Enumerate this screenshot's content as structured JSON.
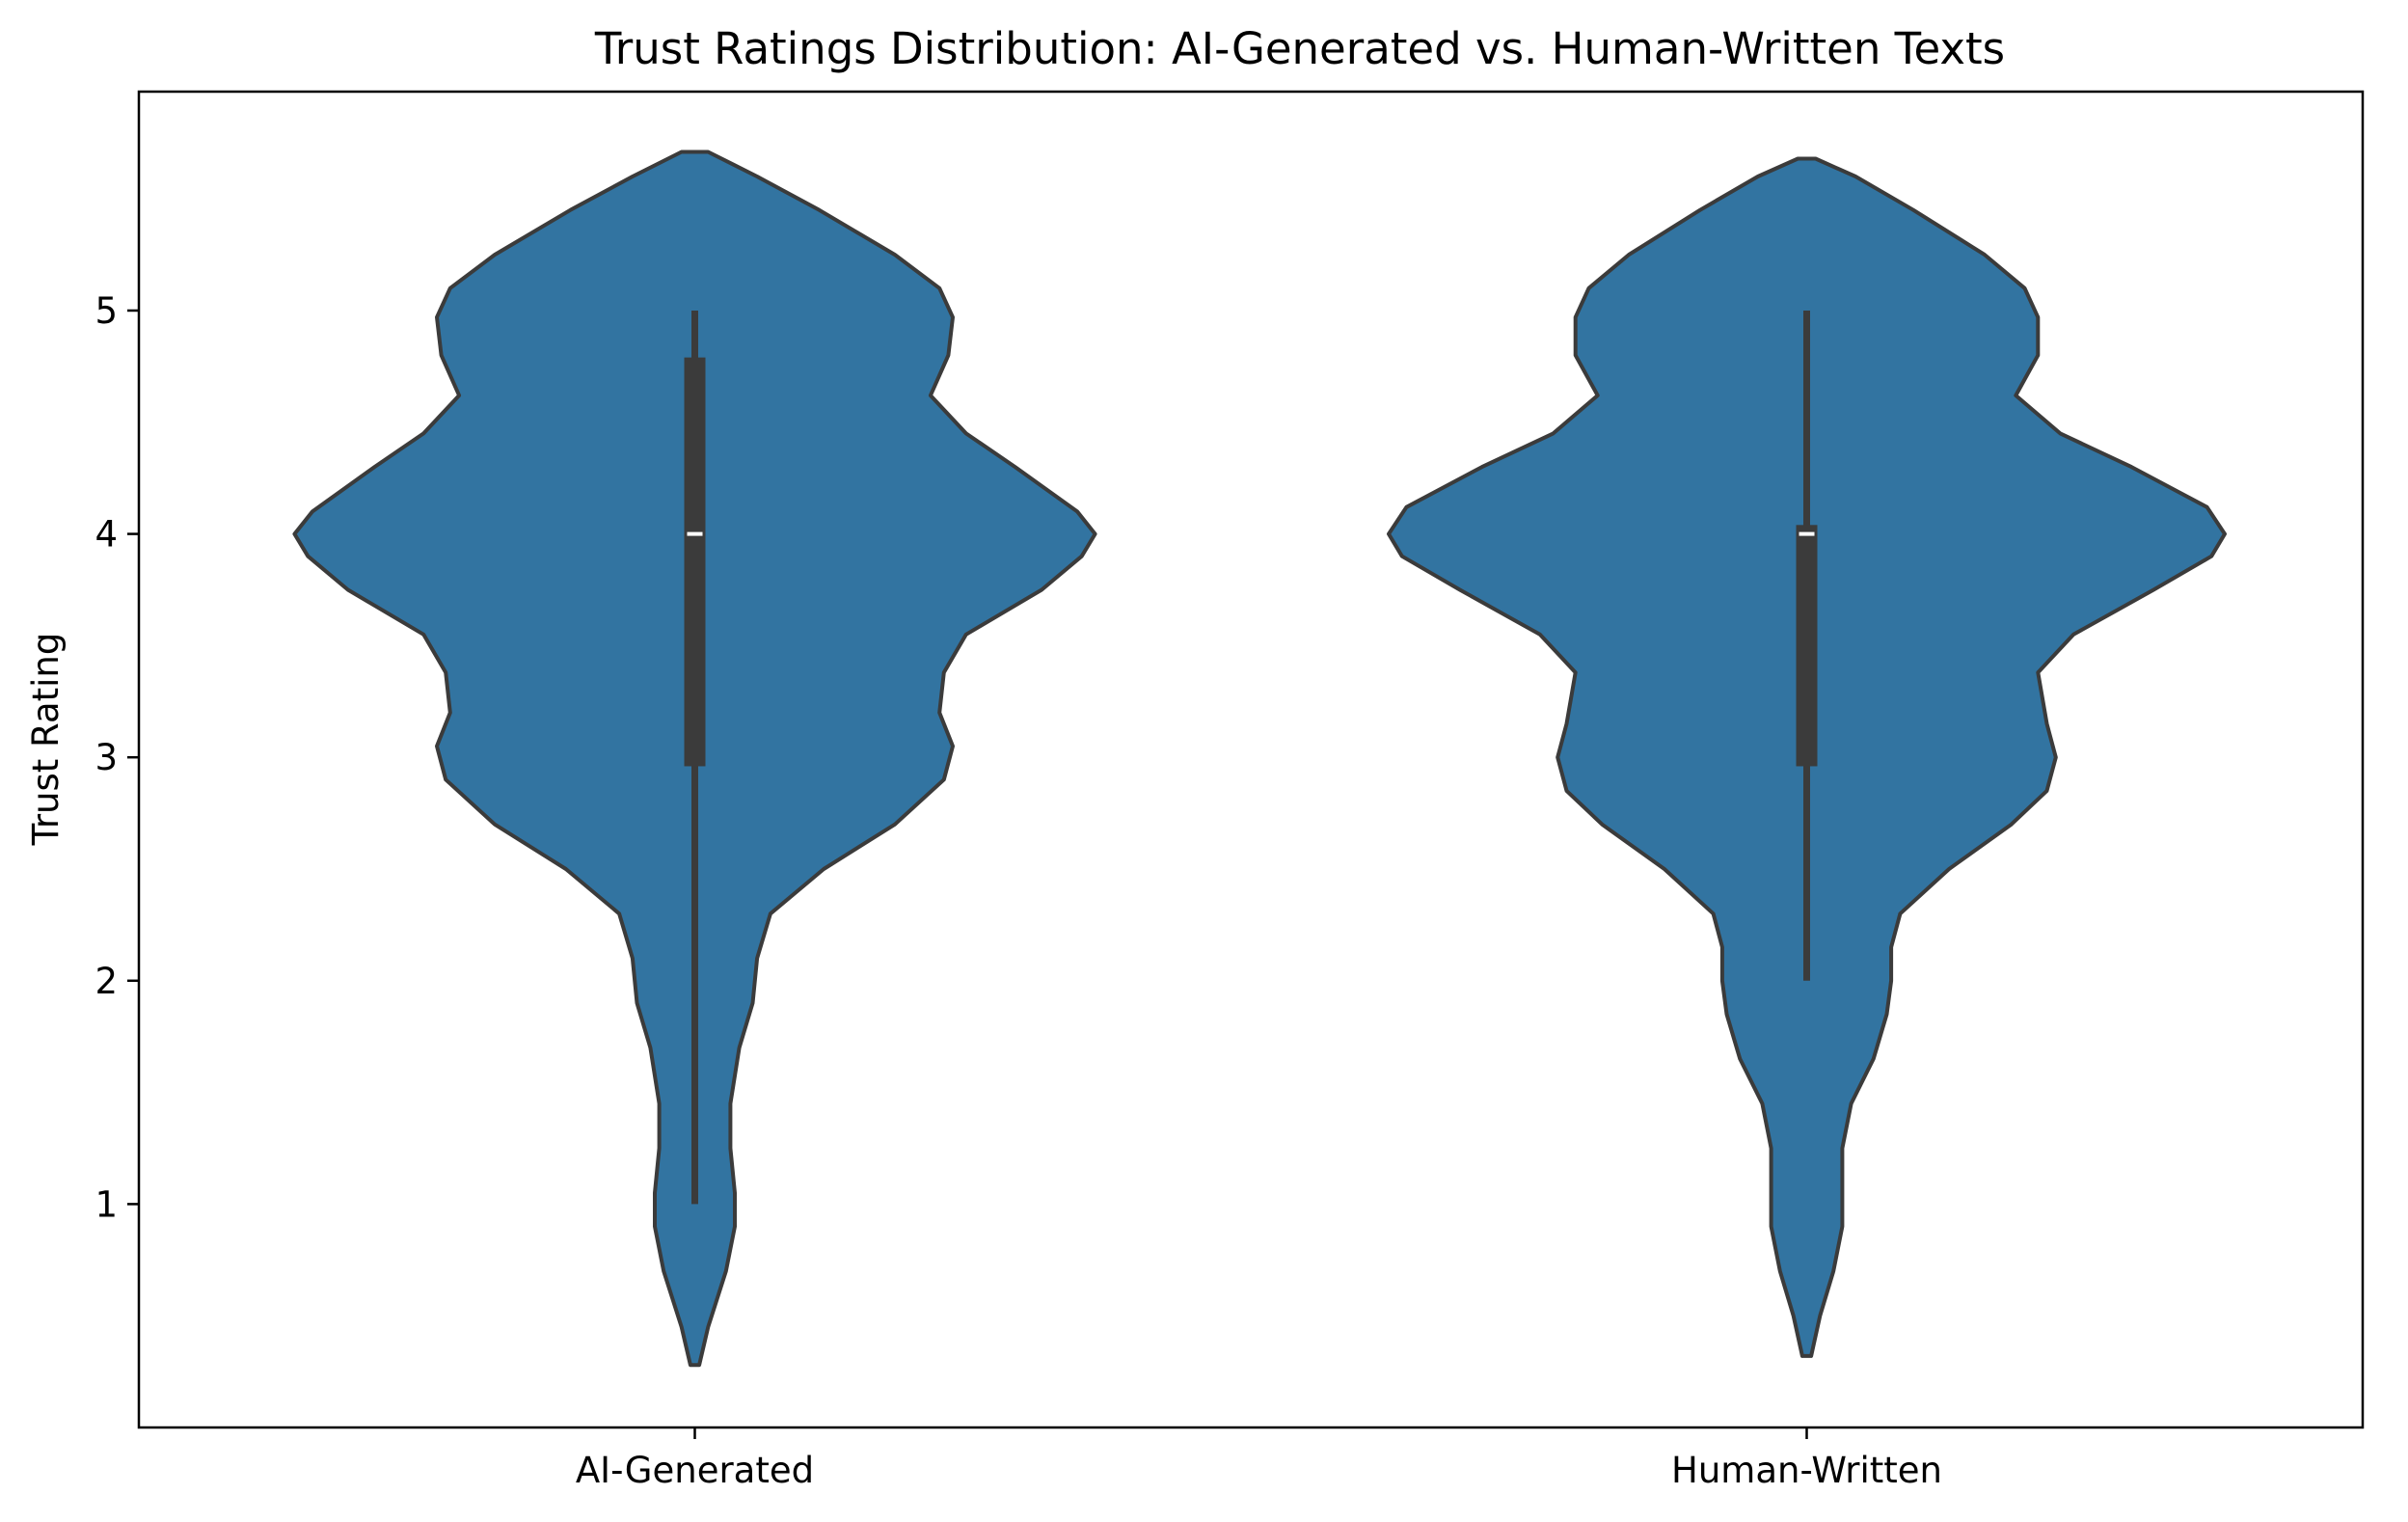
{
  "chart_data": {
    "type": "violin",
    "title": "Trust Ratings Distribution: AI-Generated vs. Human-Written Texts",
    "xlabel": "",
    "ylabel": "Trust Rating",
    "categories": [
      "AI-Generated",
      "Human-Written"
    ],
    "ylim": [
      0.0,
      5.98
    ],
    "yticks": [
      1,
      2,
      3,
      4,
      5
    ],
    "grid": false,
    "colors": {
      "fill": "#3274a1",
      "edge": "#3b3b3b",
      "box": "#3b3b3b",
      "median": "#ffffff"
    },
    "series": [
      {
        "category": "AI-Generated",
        "min": 1,
        "q1": 2.96,
        "median": 4,
        "q3": 4.79,
        "max": 5,
        "density_range": [
          0.28,
          5.71
        ],
        "density": [
          [
            0.28,
            0.01
          ],
          [
            0.45,
            0.03
          ],
          [
            0.7,
            0.07
          ],
          [
            0.9,
            0.09
          ],
          [
            1.05,
            0.09
          ],
          [
            1.25,
            0.08
          ],
          [
            1.45,
            0.08
          ],
          [
            1.7,
            0.1
          ],
          [
            1.9,
            0.13
          ],
          [
            2.1,
            0.14
          ],
          [
            2.3,
            0.17
          ],
          [
            2.5,
            0.29
          ],
          [
            2.7,
            0.45
          ],
          [
            2.9,
            0.56
          ],
          [
            3.05,
            0.58
          ],
          [
            3.2,
            0.55
          ],
          [
            3.38,
            0.56
          ],
          [
            3.55,
            0.61
          ],
          [
            3.75,
            0.78
          ],
          [
            3.9,
            0.87
          ],
          [
            4.0,
            0.9
          ],
          [
            4.1,
            0.86
          ],
          [
            4.3,
            0.72
          ],
          [
            4.45,
            0.61
          ],
          [
            4.62,
            0.53
          ],
          [
            4.8,
            0.57
          ],
          [
            4.97,
            0.58
          ],
          [
            5.1,
            0.55
          ],
          [
            5.25,
            0.45
          ],
          [
            5.45,
            0.28
          ],
          [
            5.6,
            0.14
          ],
          [
            5.71,
            0.03
          ]
        ]
      },
      {
        "category": "Human-Written",
        "min": 2,
        "q1": 2.96,
        "median": 4,
        "q3": 4.04,
        "max": 5,
        "density_range": [
          0.32,
          5.68
        ],
        "density": [
          [
            0.32,
            0.01
          ],
          [
            0.5,
            0.03
          ],
          [
            0.7,
            0.06
          ],
          [
            0.9,
            0.08
          ],
          [
            1.05,
            0.08
          ],
          [
            1.25,
            0.08
          ],
          [
            1.45,
            0.1
          ],
          [
            1.65,
            0.15
          ],
          [
            1.85,
            0.18
          ],
          [
            2.0,
            0.19
          ],
          [
            2.15,
            0.19
          ],
          [
            2.3,
            0.21
          ],
          [
            2.5,
            0.32
          ],
          [
            2.7,
            0.46
          ],
          [
            2.85,
            0.54
          ],
          [
            3.0,
            0.56
          ],
          [
            3.15,
            0.54
          ],
          [
            3.38,
            0.52
          ],
          [
            3.55,
            0.6
          ],
          [
            3.75,
            0.78
          ],
          [
            3.9,
            0.91
          ],
          [
            4.0,
            0.94
          ],
          [
            4.12,
            0.9
          ],
          [
            4.3,
            0.73
          ],
          [
            4.45,
            0.57
          ],
          [
            4.62,
            0.47
          ],
          [
            4.8,
            0.52
          ],
          [
            4.97,
            0.52
          ],
          [
            5.1,
            0.49
          ],
          [
            5.25,
            0.4
          ],
          [
            5.45,
            0.24
          ],
          [
            5.6,
            0.11
          ],
          [
            5.68,
            0.02
          ]
        ]
      }
    ]
  }
}
